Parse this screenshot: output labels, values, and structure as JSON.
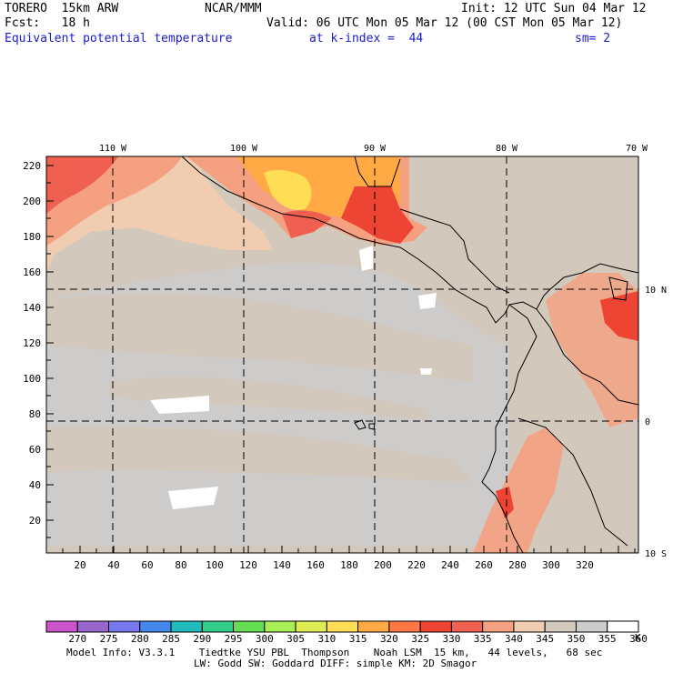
{
  "header": {
    "model": "TORERO  15km ARW",
    "org": "NCAR/MMM",
    "init": "Init: 12 UTC Sun 04 Mar 12",
    "fcst": "Fcst:   18 h",
    "valid": "Valid: 06 UTC Mon 05 Mar 12 (00 CST Mon 05 Mar 12)",
    "field": "Equivalent potential temperature",
    "level": "at k-index =  44",
    "smooth": "sm= 2"
  },
  "map": {
    "lon_labels": [
      "110 W",
      "100 W",
      "90 W",
      "80 W",
      "70 W"
    ],
    "lat_labels": [
      "10 N",
      "0",
      "10 S"
    ],
    "x_ticks": [
      "20",
      "40",
      "60",
      "80",
      "100",
      "120",
      "140",
      "160",
      "180",
      "200",
      "220",
      "240",
      "260",
      "280",
      "300",
      "320"
    ],
    "y_ticks": [
      "20",
      "40",
      "60",
      "80",
      "100",
      "120",
      "140",
      "160",
      "180",
      "200",
      "220"
    ]
  },
  "colorbar": {
    "unit": "K",
    "labels": [
      "270",
      "275",
      "280",
      "285",
      "290",
      "295",
      "300",
      "305",
      "310",
      "315",
      "320",
      "325",
      "330",
      "335",
      "340",
      "345",
      "350",
      "355",
      "360"
    ],
    "colors": [
      "#cc55cc",
      "#9966cc",
      "#7777ee",
      "#4488ee",
      "#22bbbb",
      "#33cc88",
      "#66dd55",
      "#aaee55",
      "#ddee55",
      "#ffdd55",
      "#ffaa44",
      "#ff7744",
      "#ee4433",
      "#f06050",
      "#f5a080",
      "#f0ccb0",
      "#d2c8bc",
      "#cccccc",
      "#ffffff"
    ]
  },
  "footer": {
    "line1": "Model Info: V3.3.1    Tiedtke YSU PBL  Thompson    Noah LSM  15 km,   44 levels,   68 sec",
    "line2": "LW: Godd SW: Goddard DIFF: simple KM: 2D Smagor"
  }
}
